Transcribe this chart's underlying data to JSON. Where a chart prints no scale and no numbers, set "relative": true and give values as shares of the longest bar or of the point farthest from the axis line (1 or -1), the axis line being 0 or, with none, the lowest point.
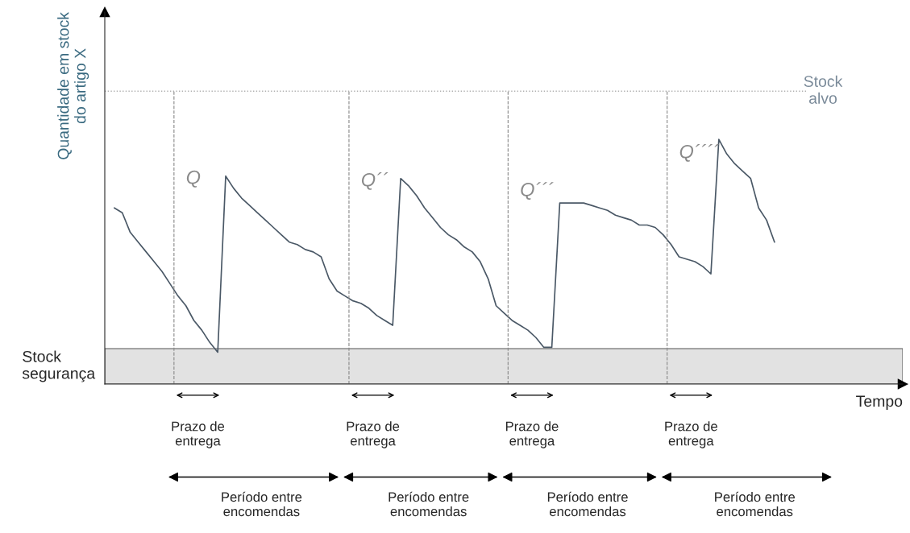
{
  "chart_data": {
    "type": "line",
    "relative": true,
    "ylabel": "Quantidade em stock\ndo artigo X",
    "marker": "none",
    "line_style": "solid",
    "categories": [
      null,
      null,
      null,
      null,
      null,
      null,
      null,
      null,
      null,
      null,
      null,
      null,
      null,
      null,
      null,
      null,
      null,
      null,
      null,
      null,
      null,
      null,
      null,
      null,
      null,
      null,
      null,
      null,
      null,
      null,
      null,
      null,
      null,
      null,
      null,
      null,
      null,
      null,
      null,
      null,
      null,
      null,
      null,
      null,
      null,
      null,
      null,
      null,
      null,
      null,
      null,
      null,
      null,
      null,
      null,
      null,
      null,
      null,
      null,
      null,
      null,
      null,
      null,
      null,
      null,
      null,
      null,
      null,
      null,
      null,
      null,
      null,
      null,
      null,
      null,
      null,
      null,
      null,
      null,
      null,
      null,
      null,
      null,
      null
    ],
    "series": [
      {
        "color": "#4a5866",
        "values": [
          0.72,
          0.7,
          0.62,
          0.58,
          0.54,
          0.5,
          0.46,
          0.41,
          0.36,
          0.32,
          0.26,
          0.22,
          0.17,
          0.13,
          0.85,
          0.8,
          0.76,
          0.73,
          0.7,
          0.67,
          0.64,
          0.61,
          0.58,
          0.57,
          0.55,
          0.54,
          0.52,
          0.43,
          0.38,
          0.36,
          0.34,
          0.33,
          0.31,
          0.28,
          0.26,
          0.24,
          0.84,
          0.81,
          0.77,
          0.72,
          0.68,
          0.64,
          0.61,
          0.59,
          0.56,
          0.54,
          0.5,
          0.43,
          0.32,
          0.29,
          0.26,
          0.24,
          0.22,
          0.19,
          0.15,
          0.15,
          0.74,
          0.74,
          0.74,
          0.74,
          0.73,
          0.72,
          0.71,
          0.69,
          0.68,
          0.67,
          0.65,
          0.65,
          0.64,
          0.61,
          0.57,
          0.52,
          0.51,
          0.5,
          0.48,
          0.45,
          1.0,
          0.94,
          0.9,
          0.87,
          0.84,
          0.72,
          0.67,
          0.58
        ]
      }
    ],
    "ref_lines": [
      {
        "axis": "y",
        "value": 1.197,
        "label": "Stock\nalvo",
        "color": "#b0b0b0",
        "line_style": "dotted"
      }
    ],
    "bands": [
      {
        "axis": "y",
        "from": 0,
        "to": 0.145,
        "label": "Stock\nsegurança",
        "color": "#e2e2e2"
      }
    ],
    "annotations": [
      "Q",
      "Q´´",
      "Q´´´",
      "Q´´´´",
      "Prazo de\nentrega",
      "Prazo de\nentrega",
      "Prazo de\nentrega",
      "Prazo de\nentrega",
      "Período entre\nencomendas",
      "Período entre\nencomendas",
      "Período entre\nencomendas",
      "Período entre\nencomendas",
      "Tempo"
    ]
  }
}
